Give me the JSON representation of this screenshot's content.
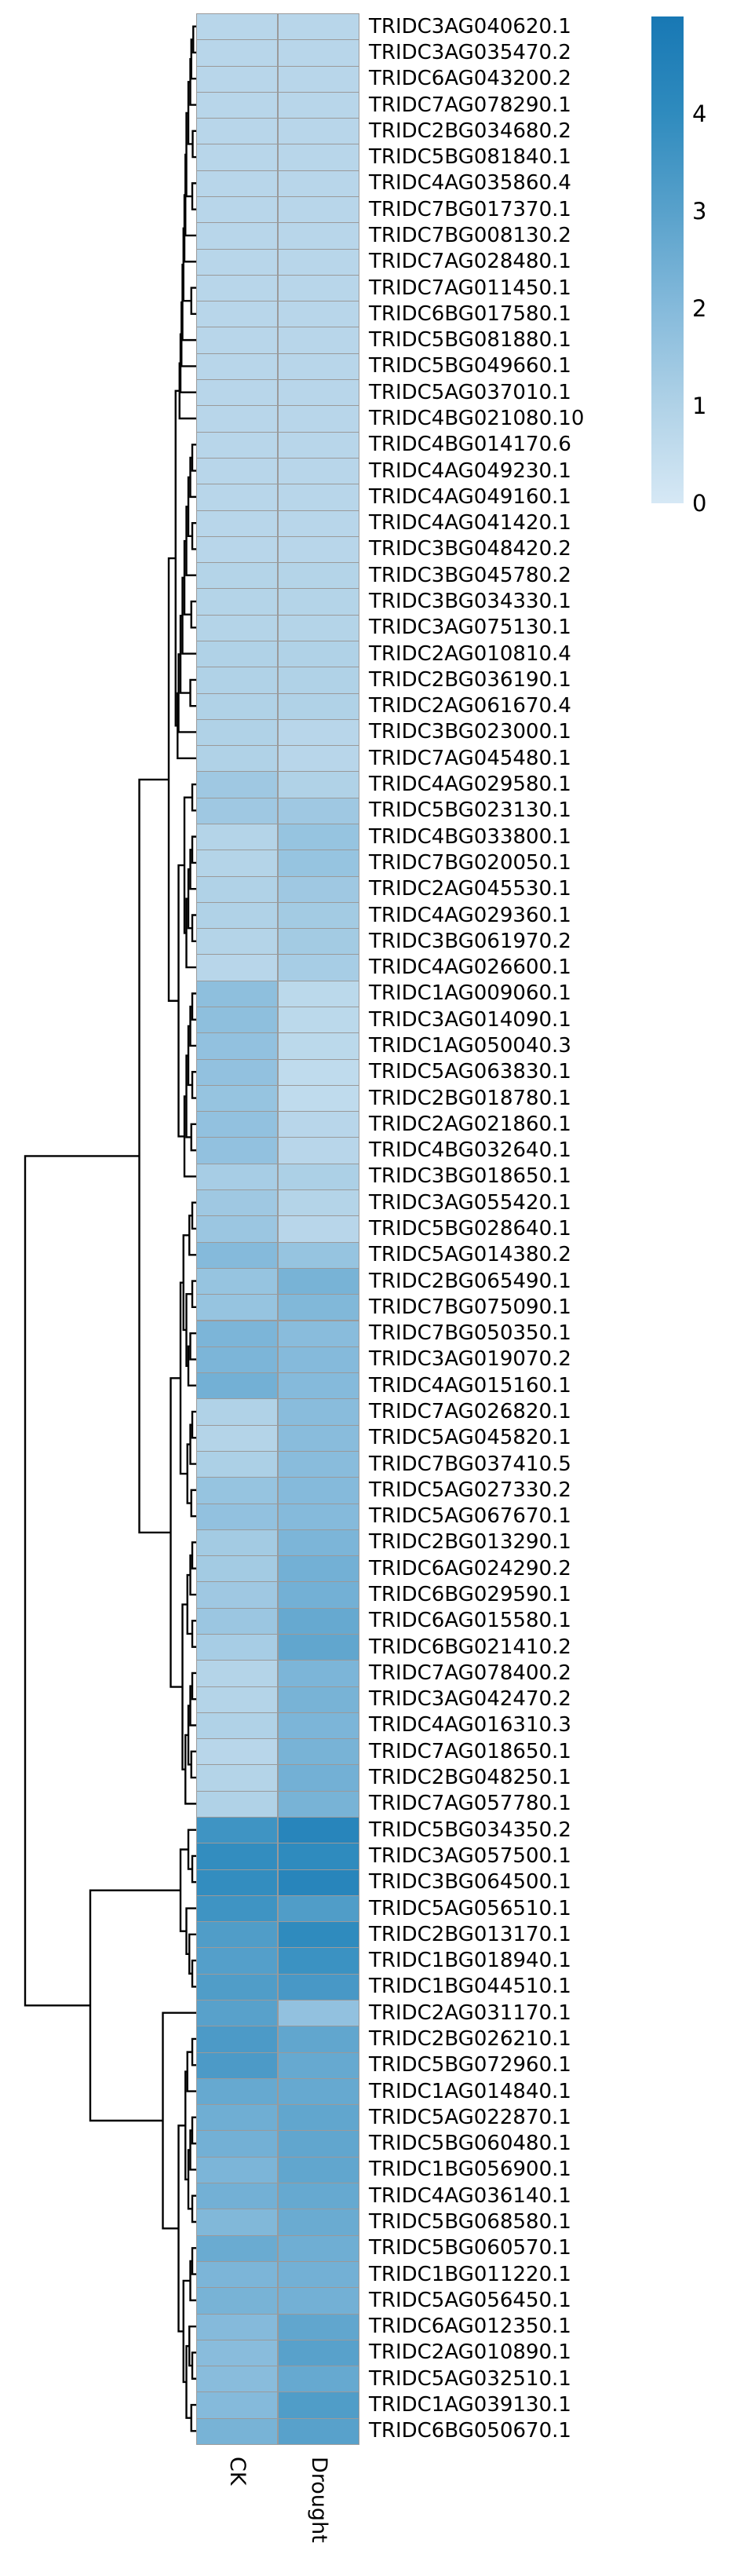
{
  "chart_data": {
    "type": "heatmap",
    "subtype": "clustermap_with_row_dendrogram",
    "title": "",
    "columns": [
      "CK",
      "Drought"
    ],
    "rows": [
      {
        "gene": "TRIDC3AG040620.1",
        "ck": 0.8,
        "drought": 0.8
      },
      {
        "gene": "TRIDC3AG035470.2",
        "ck": 0.8,
        "drought": 0.8
      },
      {
        "gene": "TRIDC6AG043200.2",
        "ck": 0.8,
        "drought": 0.8
      },
      {
        "gene": "TRIDC7AG078290.1",
        "ck": 0.8,
        "drought": 0.8
      },
      {
        "gene": "TRIDC2BG034680.2",
        "ck": 0.8,
        "drought": 0.8
      },
      {
        "gene": "TRIDC5BG081840.1",
        "ck": 0.8,
        "drought": 0.8
      },
      {
        "gene": "TRIDC4AG035860.4",
        "ck": 0.8,
        "drought": 0.8
      },
      {
        "gene": "TRIDC7BG017370.1",
        "ck": 0.8,
        "drought": 0.8
      },
      {
        "gene": "TRIDC7BG008130.2",
        "ck": 0.8,
        "drought": 0.8
      },
      {
        "gene": "TRIDC7AG028480.1",
        "ck": 0.8,
        "drought": 0.8
      },
      {
        "gene": "TRIDC7AG011450.1",
        "ck": 0.8,
        "drought": 0.8
      },
      {
        "gene": "TRIDC6BG017580.1",
        "ck": 0.8,
        "drought": 0.8
      },
      {
        "gene": "TRIDC5BG081880.1",
        "ck": 0.8,
        "drought": 0.8
      },
      {
        "gene": "TRIDC5BG049660.1",
        "ck": 0.8,
        "drought": 0.8
      },
      {
        "gene": "TRIDC5AG037010.1",
        "ck": 0.8,
        "drought": 0.8
      },
      {
        "gene": "TRIDC4BG021080.10",
        "ck": 0.8,
        "drought": 0.8
      },
      {
        "gene": "TRIDC4BG014170.6",
        "ck": 0.8,
        "drought": 0.8
      },
      {
        "gene": "TRIDC4AG049230.1",
        "ck": 0.8,
        "drought": 0.8
      },
      {
        "gene": "TRIDC4AG049160.1",
        "ck": 0.8,
        "drought": 0.8
      },
      {
        "gene": "TRIDC4AG041420.1",
        "ck": 0.8,
        "drought": 0.8
      },
      {
        "gene": "TRIDC3BG048420.2",
        "ck": 0.8,
        "drought": 0.8
      },
      {
        "gene": "TRIDC3BG045780.2",
        "ck": 0.9,
        "drought": 0.9
      },
      {
        "gene": "TRIDC3BG034330.1",
        "ck": 0.9,
        "drought": 0.9
      },
      {
        "gene": "TRIDC3AG075130.1",
        "ck": 0.9,
        "drought": 0.9
      },
      {
        "gene": "TRIDC2AG010810.4",
        "ck": 1.0,
        "drought": 1.0
      },
      {
        "gene": "TRIDC2BG036190.1",
        "ck": 1.0,
        "drought": 1.0
      },
      {
        "gene": "TRIDC2AG061670.4",
        "ck": 1.0,
        "drought": 1.0
      },
      {
        "gene": "TRIDC3BG023000.1",
        "ck": 1.0,
        "drought": 0.8
      },
      {
        "gene": "TRIDC7AG045480.1",
        "ck": 1.0,
        "drought": 0.8
      },
      {
        "gene": "TRIDC4AG029580.1",
        "ck": 1.4,
        "drought": 1.0
      },
      {
        "gene": "TRIDC5BG023130.1",
        "ck": 1.4,
        "drought": 1.4
      },
      {
        "gene": "TRIDC4BG033800.1",
        "ck": 0.9,
        "drought": 1.6
      },
      {
        "gene": "TRIDC7BG020050.1",
        "ck": 0.9,
        "drought": 1.6
      },
      {
        "gene": "TRIDC2AG045530.1",
        "ck": 1.0,
        "drought": 1.4
      },
      {
        "gene": "TRIDC4AG029360.1",
        "ck": 1.0,
        "drought": 1.3
      },
      {
        "gene": "TRIDC3BG061970.2",
        "ck": 0.9,
        "drought": 1.3
      },
      {
        "gene": "TRIDC4AG026600.1",
        "ck": 0.8,
        "drought": 1.2
      },
      {
        "gene": "TRIDC1AG009060.1",
        "ck": 1.8,
        "drought": 0.7
      },
      {
        "gene": "TRIDC3AG014090.1",
        "ck": 1.8,
        "drought": 0.7
      },
      {
        "gene": "TRIDC1AG050040.3",
        "ck": 1.7,
        "drought": 0.7
      },
      {
        "gene": "TRIDC5AG063830.1",
        "ck": 1.7,
        "drought": 0.6
      },
      {
        "gene": "TRIDC2BG018780.1",
        "ck": 1.6,
        "drought": 0.6
      },
      {
        "gene": "TRIDC2AG021860.1",
        "ck": 1.7,
        "drought": 0.8
      },
      {
        "gene": "TRIDC4BG032640.1",
        "ck": 1.7,
        "drought": 0.8
      },
      {
        "gene": "TRIDC3BG018650.1",
        "ck": 1.2,
        "drought": 1.1
      },
      {
        "gene": "TRIDC3AG055420.1",
        "ck": 1.4,
        "drought": 0.9
      },
      {
        "gene": "TRIDC5BG028640.1",
        "ck": 1.5,
        "drought": 0.8
      },
      {
        "gene": "TRIDC5AG014380.2",
        "ck": 2.0,
        "drought": 1.6
      },
      {
        "gene": "TRIDC2BG065490.1",
        "ck": 1.6,
        "drought": 2.3
      },
      {
        "gene": "TRIDC7BG075090.1",
        "ck": 1.6,
        "drought": 2.1
      },
      {
        "gene": "TRIDC7BG050350.1",
        "ck": 2.2,
        "drought": 1.9
      },
      {
        "gene": "TRIDC3AG019070.2",
        "ck": 2.2,
        "drought": 2.0
      },
      {
        "gene": "TRIDC4AG015160.1",
        "ck": 2.4,
        "drought": 2.0
      },
      {
        "gene": "TRIDC7AG026820.1",
        "ck": 1.0,
        "drought": 1.9
      },
      {
        "gene": "TRIDC5AG045820.1",
        "ck": 0.9,
        "drought": 1.9
      },
      {
        "gene": "TRIDC7BG037410.5",
        "ck": 1.1,
        "drought": 1.9
      },
      {
        "gene": "TRIDC5AG027330.2",
        "ck": 1.6,
        "drought": 2.0
      },
      {
        "gene": "TRIDC5AG067670.1",
        "ck": 1.7,
        "drought": 2.0
      },
      {
        "gene": "TRIDC2BG013290.1",
        "ck": 1.3,
        "drought": 2.2
      },
      {
        "gene": "TRIDC6AG024290.2",
        "ck": 1.3,
        "drought": 2.4
      },
      {
        "gene": "TRIDC6BG029590.1",
        "ck": 1.4,
        "drought": 2.4
      },
      {
        "gene": "TRIDC6AG015580.1",
        "ck": 1.5,
        "drought": 2.7
      },
      {
        "gene": "TRIDC6BG021410.2",
        "ck": 1.2,
        "drought": 2.8
      },
      {
        "gene": "TRIDC7AG078400.2",
        "ck": 0.9,
        "drought": 2.2
      },
      {
        "gene": "TRIDC3AG042470.2",
        "ck": 0.9,
        "drought": 2.3
      },
      {
        "gene": "TRIDC4AG016310.3",
        "ck": 1.0,
        "drought": 2.2
      },
      {
        "gene": "TRIDC7AG018650.1",
        "ck": 0.8,
        "drought": 2.3
      },
      {
        "gene": "TRIDC2BG048250.1",
        "ck": 0.9,
        "drought": 2.4
      },
      {
        "gene": "TRIDC7AG057780.1",
        "ck": 1.0,
        "drought": 2.3
      },
      {
        "gene": "TRIDC5BG034350.2",
        "ck": 3.6,
        "drought": 4.3
      },
      {
        "gene": "TRIDC3AG057500.1",
        "ck": 3.9,
        "drought": 4.0
      },
      {
        "gene": "TRIDC3BG064500.1",
        "ck": 3.9,
        "drought": 4.3
      },
      {
        "gene": "TRIDC5AG056510.1",
        "ck": 3.6,
        "drought": 3.2
      },
      {
        "gene": "TRIDC2BG013170.1",
        "ck": 3.2,
        "drought": 4.0
      },
      {
        "gene": "TRIDC1BG018940.1",
        "ck": 3.1,
        "drought": 3.7
      },
      {
        "gene": "TRIDC1BG044510.1",
        "ck": 3.2,
        "drought": 3.4
      },
      {
        "gene": "TRIDC2AG031170.1",
        "ck": 3.0,
        "drought": 1.7
      },
      {
        "gene": "TRIDC2BG026210.1",
        "ck": 3.3,
        "drought": 2.8
      },
      {
        "gene": "TRIDC5BG072960.1",
        "ck": 3.3,
        "drought": 2.7
      },
      {
        "gene": "TRIDC1AG014840.1",
        "ck": 2.7,
        "drought": 2.7
      },
      {
        "gene": "TRIDC5AG022870.1",
        "ck": 2.5,
        "drought": 2.8
      },
      {
        "gene": "TRIDC5BG060480.1",
        "ck": 2.4,
        "drought": 2.8
      },
      {
        "gene": "TRIDC1BG056900.1",
        "ck": 2.2,
        "drought": 2.8
      },
      {
        "gene": "TRIDC4AG036140.1",
        "ck": 2.4,
        "drought": 2.7
      },
      {
        "gene": "TRIDC5BG068580.1",
        "ck": 2.1,
        "drought": 2.6
      },
      {
        "gene": "TRIDC5BG060570.1",
        "ck": 2.6,
        "drought": 2.5
      },
      {
        "gene": "TRIDC1BG011220.1",
        "ck": 2.2,
        "drought": 2.4
      },
      {
        "gene": "TRIDC5AG056450.1",
        "ck": 2.3,
        "drought": 2.4
      },
      {
        "gene": "TRIDC6AG012350.1",
        "ck": 2.0,
        "drought": 2.8
      },
      {
        "gene": "TRIDC2AG010890.1",
        "ck": 1.9,
        "drought": 3.0
      },
      {
        "gene": "TRIDC5AG032510.1",
        "ck": 1.9,
        "drought": 2.7
      },
      {
        "gene": "TRIDC1AG039130.1",
        "ck": 2.0,
        "drought": 3.2
      },
      {
        "gene": "TRIDC6BG050670.1",
        "ck": 2.3,
        "drought": 3.0
      }
    ],
    "colorbar": {
      "vmin": 0,
      "vmax": 5,
      "tick_labels": [
        "4",
        "3",
        "2",
        "1",
        "0"
      ],
      "tick_values": [
        4,
        3,
        2,
        1,
        0
      ],
      "colormap_stops": [
        [
          0,
          "#d6e8f5"
        ],
        [
          1,
          "#b0d2e7"
        ],
        [
          2,
          "#85badb"
        ],
        [
          3,
          "#58a1cb"
        ],
        [
          4,
          "#2f8bbe"
        ],
        [
          5,
          "#1878b4"
        ]
      ]
    },
    "cell_border_color": "#9a9a9a",
    "dendrogram_color": "#000000",
    "legend_position": "right",
    "dendrogram": [
      0.872,
      [
        0.29,
        [
          0.14,
          [
            0.105,
            [
              0.085,
              [
                0.08,
                [
                  0.075,
                  [
                    0.07,
                    [
                      0.065,
                      [
                        0.06,
                        [
                          0.055,
                          [
                            0.05,
                            [
                              0.04,
                              [
                                0.03,
                                [
                                  0.025,
                                  [
                                    0.015,
                                    0,
                                    1
                                  ],
                                  2
                                ],
                                3
                              ],
                              [
                                0.018,
                                4,
                                5
                              ]
                            ],
                            [
                              0.02,
                              6,
                              7
                            ]
                          ],
                          8
                        ],
                        9
                      ],
                      [
                        0.025,
                        10,
                        11
                      ]
                    ],
                    12
                  ],
                  13
                ],
                14
              ],
              15
            ],
            [
              0.095,
              [
                0.09,
                [
                  0.08,
                  [
                    0.07,
                    [
                      0.06,
                      [
                        0.05,
                        [
                          0.04,
                          [
                            0.03,
                            [
                              0.02,
                              16,
                              17
                            ],
                            18
                          ],
                          [
                            0.02,
                            19,
                            20
                          ]
                        ],
                        21
                      ],
                      [
                        0.025,
                        22,
                        23
                      ]
                    ],
                    24
                  ],
                  [
                    0.03,
                    25,
                    26
                  ]
                ],
                27
              ],
              28
            ]
          ],
          [
            0.09,
            [
              0.06,
              [
                0.02,
                29,
                30
              ],
              [
                0.05,
                [
                  0.04,
                  [
                    0.03,
                    [
                      0.02,
                      31,
                      32
                    ],
                    33
                  ],
                  [
                    0.02,
                    34,
                    35
                  ]
                ],
                36
              ]
            ],
            [
              0.06,
              [
                0.05,
                [
                  0.04,
                  [
                    0.03,
                    [
                      0.02,
                      37,
                      38
                    ],
                    39
                  ],
                  [
                    0.02,
                    40,
                    41
                  ]
                ],
                [
                  0.025,
                  42,
                  43
                ]
              ],
              44
            ]
          ]
        ],
        [
          0.13,
          [
            0.08,
            [
              0.065,
              [
                0.035,
                [
                  0.02,
                  45,
                  46
                ],
                47
              ],
              [
                0.05,
                [
                  0.02,
                  48,
                  49
                ],
                [
                  0.04,
                  [
                    0.03,
                    50,
                    51
                  ],
                  52
                ]
              ]
            ],
            [
              0.045,
              [
                0.03,
                [
                  0.02,
                  53,
                  54
                ],
                55
              ],
              [
                0.025,
                56,
                57
              ]
            ]
          ],
          [
            0.07,
            [
              0.045,
              [
                0.03,
                [
                  0.02,
                  58,
                  59
                ],
                60
              ],
              [
                0.02,
                61,
                62
              ]
            ],
            [
              0.055,
              [
                0.04,
                [
                  0.03,
                  [
                    0.02,
                    63,
                    64
                  ],
                  65
                ],
                [
                  0.025,
                  66,
                  67
                ]
              ],
              68
            ]
          ]
        ]
      ],
      [
        0.54,
        [
          0.08,
          [
            0.04,
            69,
            [
              0.02,
              70,
              71
            ]
          ],
          [
            0.05,
            72,
            [
              0.035,
              73,
              [
                0.02,
                74,
                75
              ]
            ]
          ]
        ],
        [
          0.17,
          76,
          [
            0.09,
            [
              0.055,
              [
                0.045,
                [
                  0.02,
                  77,
                  78
                ],
                79
              ],
              [
                0.04,
                [
                  0.03,
                  [
                    0.02,
                    80,
                    81
                  ],
                  82
                ],
                [
                  0.02,
                  83,
                  84
                ]
              ]
            ],
            [
              0.065,
              [
                0.03,
                [
                  0.02,
                  85,
                  86
                ],
                87
              ],
              [
                0.05,
                [
                  0.035,
                  88,
                  [
                    0.02,
                    89,
                    90
                  ]
                ],
                [
                  0.025,
                  91,
                  92
                ]
              ]
            ]
          ]
        ]
      ]
    ]
  }
}
